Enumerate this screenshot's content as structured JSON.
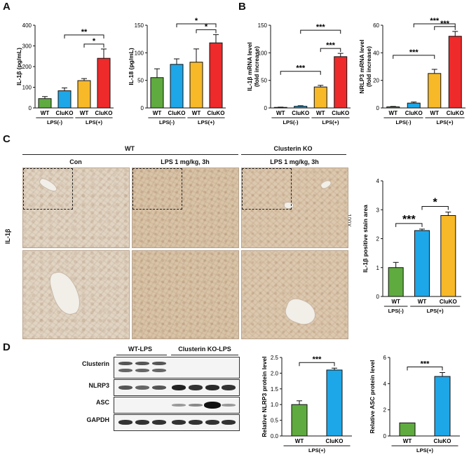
{
  "panels": {
    "A": {
      "letter": "A"
    },
    "B": {
      "letter": "B"
    },
    "C": {
      "letter": "C"
    },
    "D": {
      "letter": "D"
    }
  },
  "colors": {
    "wt": "#5fab3f",
    "cluko": "#1ea7e8",
    "wt_lps": "#f7b928",
    "cluko_lps": "#ee2a2a"
  },
  "chart_data": [
    {
      "id": "A1",
      "type": "bar",
      "ylabel": "IL-1β (pg/mL)",
      "ylim": [
        0,
        400
      ],
      "yticks": [
        0,
        100,
        200,
        300,
        400
      ],
      "categories": [
        "WT",
        "CluKO",
        "WT",
        "CluKO"
      ],
      "values": [
        45,
        83,
        132,
        240
      ],
      "errors": [
        10,
        14,
        10,
        45
      ],
      "colors": [
        "#5fab3f",
        "#1ea7e8",
        "#f7b928",
        "#ee2a2a"
      ],
      "groups": [
        {
          "label": "LPS(-)",
          "from": 0,
          "to": 1
        },
        {
          "label": "LPS(+)",
          "from": 2,
          "to": 3
        }
      ],
      "sig": [
        {
          "from": 1,
          "to": 3,
          "text": "**",
          "level": 1
        },
        {
          "from": 2,
          "to": 3,
          "text": "*",
          "level": 0
        }
      ]
    },
    {
      "id": "A2",
      "type": "bar",
      "ylabel": "IL-18 (pg/mL)",
      "ylim": [
        0,
        150
      ],
      "yticks": [
        0,
        50,
        100,
        150
      ],
      "categories": [
        "WT",
        "CluKO",
        "WT",
        "CluKO"
      ],
      "values": [
        55,
        79,
        83,
        118
      ],
      "errors": [
        16,
        10,
        24,
        15
      ],
      "colors": [
        "#5fab3f",
        "#1ea7e8",
        "#f7b928",
        "#ee2a2a"
      ],
      "groups": [
        {
          "label": "LPS(-)",
          "from": 0,
          "to": 1
        },
        {
          "label": "LPS(+)",
          "from": 2,
          "to": 3
        }
      ],
      "sig": [
        {
          "from": 1,
          "to": 3,
          "text": "*",
          "level": 1
        },
        {
          "from": 2,
          "to": 3,
          "text": "*",
          "level": 0
        }
      ]
    },
    {
      "id": "B1",
      "type": "bar",
      "ylabel": "IL-1β mRNA level",
      "ylabel2": "(fold increase)",
      "ylim": [
        0,
        150
      ],
      "yticks": [
        0,
        50,
        100,
        150
      ],
      "categories": [
        "WT",
        "CluKO",
        "WT",
        "CluKO"
      ],
      "values": [
        1,
        3,
        38,
        93
      ],
      "errors": [
        0.5,
        1,
        3,
        6
      ],
      "colors": [
        "#5fab3f",
        "#1ea7e8",
        "#f7b928",
        "#ee2a2a"
      ],
      "groups": [
        {
          "label": "LPS(-)",
          "from": 0,
          "to": 1
        },
        {
          "label": "LPS(+)",
          "from": 2,
          "to": 3
        }
      ],
      "sig": [
        {
          "from": 0,
          "to": 2,
          "text": "***",
          "level": 1
        },
        {
          "from": 1,
          "to": 3,
          "text": "***",
          "level": 2
        },
        {
          "from": 2,
          "to": 3,
          "text": "***",
          "level": 0
        }
      ]
    },
    {
      "id": "B2",
      "type": "bar",
      "ylabel": "NRLP3 mRNA level",
      "ylabel2": "(fold increase)",
      "ylim": [
        0,
        60
      ],
      "yticks": [
        0,
        20,
        40,
        60
      ],
      "categories": [
        "WT",
        "CluKO",
        "WT",
        "CluKO"
      ],
      "values": [
        0.8,
        3.5,
        25,
        52
      ],
      "errors": [
        0.3,
        0.8,
        3,
        3.5
      ],
      "colors": [
        "#5fab3f",
        "#1ea7e8",
        "#f7b928",
        "#ee2a2a"
      ],
      "groups": [
        {
          "label": "LPS(-)",
          "from": 0,
          "to": 1
        },
        {
          "label": "LPS(+)",
          "from": 2,
          "to": 3
        }
      ],
      "sig": [
        {
          "from": 0,
          "to": 2,
          "text": "***",
          "level": 1
        },
        {
          "from": 1,
          "to": 3,
          "text": "***",
          "level": 2
        },
        {
          "from": 2,
          "to": 3,
          "text": "***",
          "level": 0
        }
      ]
    },
    {
      "id": "C1",
      "type": "bar",
      "ylabel": "IL-1β positive stain area",
      "ylim": [
        0,
        4
      ],
      "yticks": [
        0,
        1,
        2,
        3,
        4
      ],
      "categories": [
        "WT",
        "WT",
        "CluKO"
      ],
      "values": [
        1.0,
        2.28,
        2.8
      ],
      "errors": [
        0.18,
        0.05,
        0.12
      ],
      "colors": [
        "#5fab3f",
        "#1ea7e8",
        "#f7b928"
      ],
      "groups": [
        {
          "label": "LPS(-)",
          "from": 0,
          "to": 0
        },
        {
          "label": "LPS(+)",
          "from": 1,
          "to": 2
        }
      ],
      "sig": [
        {
          "from": 0,
          "to": 1,
          "text": "***",
          "level": 0
        },
        {
          "from": 1,
          "to": 2,
          "text": "*",
          "level": 0
        }
      ]
    },
    {
      "id": "D1",
      "type": "bar",
      "ylabel": "Relative NLRP3 protein level",
      "ylim": [
        0,
        2.5
      ],
      "yticks": [
        0.0,
        0.5,
        1.0,
        1.5,
        2.0,
        2.5
      ],
      "categories": [
        "WT",
        "CluKO"
      ],
      "values": [
        1.0,
        2.1
      ],
      "errors": [
        0.12,
        0.06
      ],
      "colors": [
        "#5fab3f",
        "#1ea7e8"
      ],
      "groups": [
        {
          "label": "LPS(+)",
          "from": 0,
          "to": 1
        }
      ],
      "sig": [
        {
          "from": 0,
          "to": 1,
          "text": "***",
          "level": 0
        }
      ]
    },
    {
      "id": "D2",
      "type": "bar",
      "ylabel": "Relative ASC protein level",
      "ylim": [
        0,
        6
      ],
      "yticks": [
        0,
        2,
        4,
        6
      ],
      "categories": [
        "WT",
        "CluKO"
      ],
      "values": [
        1.0,
        4.55
      ],
      "errors": [
        0.0,
        0.3
      ],
      "colors": [
        "#5fab3f",
        "#1ea7e8"
      ],
      "groups": [
        {
          "label": "LPS(+)",
          "from": 0,
          "to": 1
        }
      ],
      "sig": [
        {
          "from": 0,
          "to": 1,
          "text": "***",
          "level": 0
        }
      ]
    }
  ],
  "panelC": {
    "wt_header": "WT",
    "ko_header": "Clusterin KO",
    "col1": "Con",
    "col2": "LPS 1 mg/kg, 3h",
    "col3": "LPS 1 mg/kg, 3h",
    "row_label": "IL-1β",
    "magnification": "100X"
  },
  "panelD": {
    "wt_header": "WT-LPS",
    "ko_header": "Clusterin KO-LPS",
    "blots": [
      "Clusterin",
      "NLRP3",
      "ASC",
      "GAPDH"
    ]
  }
}
